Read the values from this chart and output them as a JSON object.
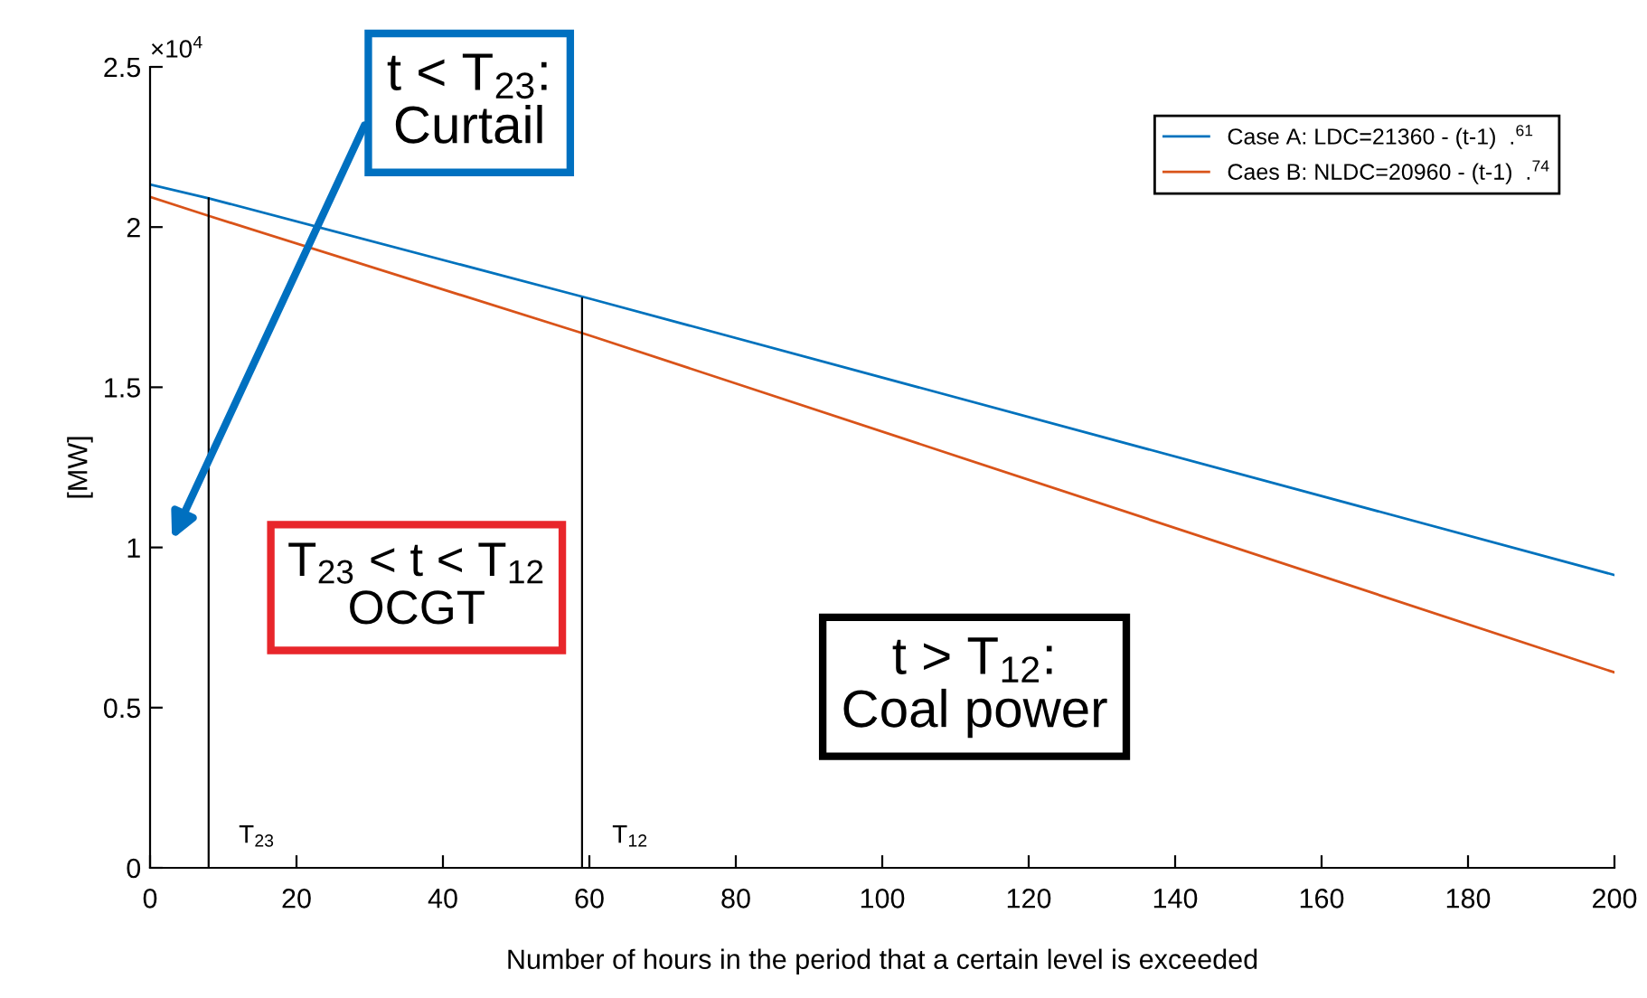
{
  "chart_data": {
    "type": "line",
    "xlabel": "Number of hours in the period that a certain level is exceeded",
    "ylabel": "[MW]",
    "xlim": [
      0,
      200
    ],
    "xticks": [
      0,
      20,
      40,
      60,
      80,
      100,
      120,
      140,
      160,
      180,
      200
    ],
    "ylim": [
      0,
      2.5
    ],
    "yticks": [
      0,
      0.5,
      1,
      1.5,
      2,
      2.5
    ],
    "series": [
      {
        "name": "Case A: LDC=21360 - (t-1)  .$^{61}$",
        "color": "#0072bd",
        "x": [
          0,
          8,
          60,
          200
        ],
        "values": [
          2.133,
          2.09,
          1.777,
          0.914
        ]
      },
      {
        "name": "Caes B: NLDC=20960 - (t-1)  .$^{74}$",
        "color": "#d95319",
        "x": [
          0,
          8,
          60,
          200
        ],
        "values": [
          2.094,
          2.035,
          1.662,
          0.61
        ]
      },
      {
        "color": "#000000",
        "x": [
          8,
          8
        ],
        "values": [
          0,
          2.09
        ]
      },
      {
        "color": "#000000",
        "x": [
          59,
          59
        ],
        "values": [
          0,
          1.777
        ]
      }
    ],
    "annotations": [
      "t < T$_{23}$:\nCurtail",
      "T$_{23}$ < t < T$_{12}$\nOCGT",
      "t > T$_{12}$:\nCoal power",
      "×10$^{4}$",
      {
        "text": "T$_{23}$",
        "x": 8,
        "y": 0
      },
      {
        "text": "T$_{12}$",
        "x": 59,
        "y": 0
      }
    ],
    "legend": "top right",
    "grid": false
  }
}
